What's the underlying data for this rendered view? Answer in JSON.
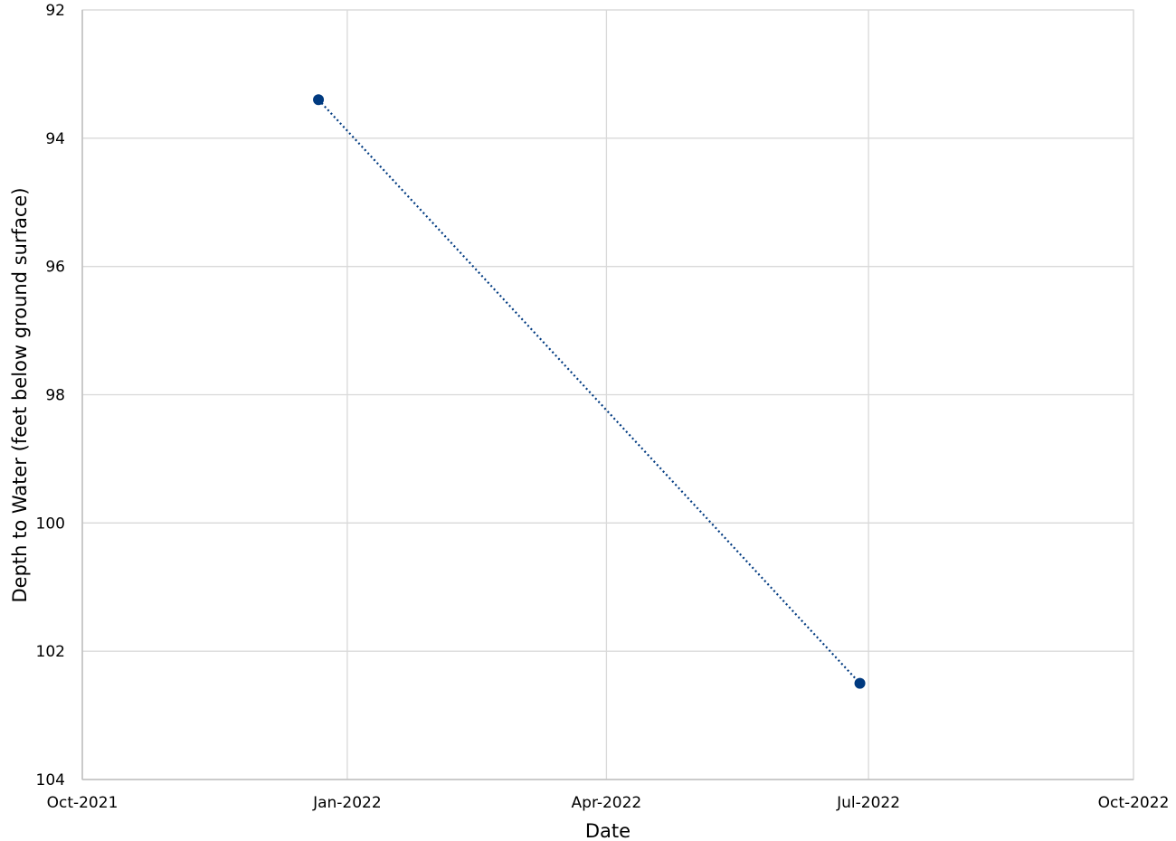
{
  "chart_data": {
    "type": "line",
    "title": "",
    "xlabel": "Date",
    "ylabel": "Depth to Water (feet below ground surface)",
    "x_axis": {
      "type": "date",
      "range": [
        "2021-10-01",
        "2022-10-01"
      ],
      "ticks": [
        {
          "value": "2021-10-01",
          "label": "Oct-2021"
        },
        {
          "value": "2022-01-01",
          "label": "Jan-2022"
        },
        {
          "value": "2022-04-01",
          "label": "Apr-2022"
        },
        {
          "value": "2022-07-01",
          "label": "Jul-2022"
        },
        {
          "value": "2022-10-01",
          "label": "Oct-2022"
        }
      ]
    },
    "y_axis": {
      "range": [
        92,
        104
      ],
      "inverted": true,
      "ticks": [
        92,
        94,
        96,
        98,
        100,
        102,
        104
      ]
    },
    "grid": true,
    "legend": "none",
    "series": [
      {
        "line_style": "dotted",
        "color": "#003a80",
        "points": [
          {
            "x": "2021-12-22",
            "y": 93.4
          },
          {
            "x": "2022-06-28",
            "y": 102.5
          }
        ]
      }
    ]
  }
}
